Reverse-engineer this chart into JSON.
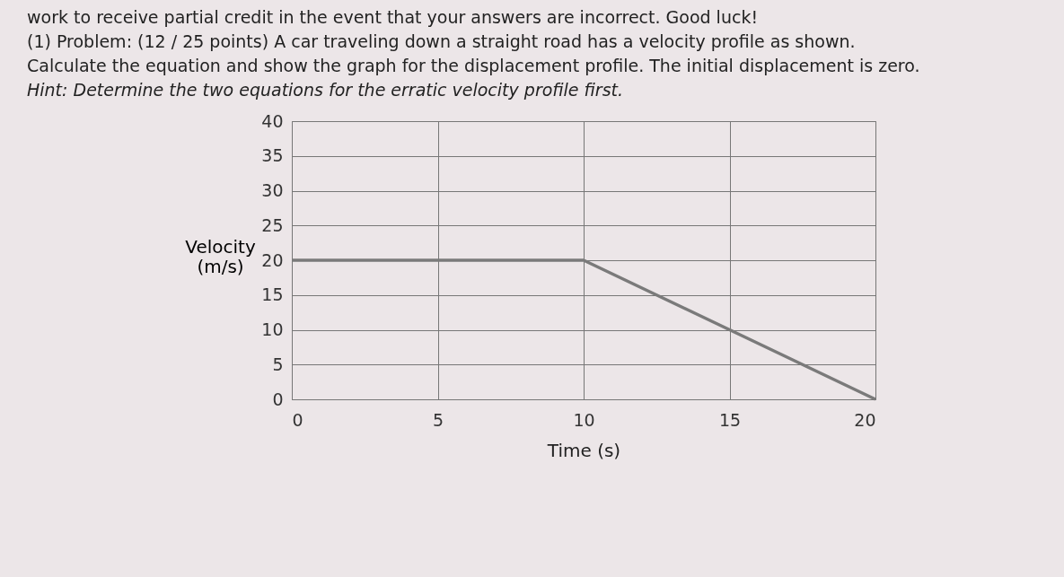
{
  "chart_data": {
    "type": "line",
    "xlabel": "Time (s)",
    "ylabel": "Velocity (m/s)",
    "x": [
      0,
      10,
      20
    ],
    "series": [
      {
        "color": "#7a7a7a",
        "values": [
          20,
          20,
          0
        ]
      }
    ],
    "xlim": [
      0,
      20
    ],
    "xticks": [
      0,
      5,
      10,
      15,
      20
    ],
    "ylim": [
      0,
      40
    ],
    "yticks": [
      0,
      5,
      10,
      15,
      20,
      25,
      30,
      35,
      40
    ],
    "grid": true,
    "marker": "none",
    "line_style": "solid",
    "annotations": [
      "work to receive partial credit in the event that your answers are incorrect. Good luck!",
      "(1) Problem: (12 / 25 points) A car traveling down a straight road has a velocity profile as shown.",
      "Calculate the equation and show the graph for the displacement profile. The initial displacement is zero.",
      "Hint: Determine the two equations for the erratic velocity profile first."
    ]
  }
}
